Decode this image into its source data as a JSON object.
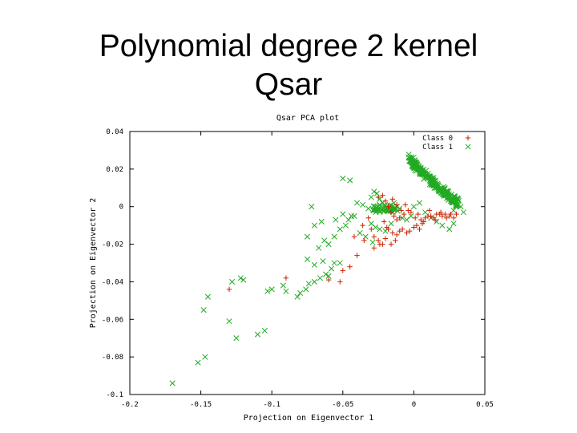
{
  "slide": {
    "title_line1": "Polynomial degree 2 kernel",
    "title_line2": "Qsar"
  },
  "chart_data": {
    "type": "scatter",
    "title": "Qsar PCA plot",
    "xlabel": "Projection on Eigenvector 1",
    "ylabel": "Projection on Eigenvector 2",
    "xlim": [
      -0.2,
      0.05
    ],
    "ylim": [
      -0.1,
      0.04
    ],
    "xticks": [
      -0.2,
      -0.15,
      -0.1,
      -0.05,
      0,
      0.05
    ],
    "xtick_labels": [
      "-0.2",
      "-0.15",
      "-0.1",
      "-0.05",
      "0",
      "0.05"
    ],
    "yticks": [
      0.04,
      0.02,
      0,
      -0.02,
      -0.04,
      -0.06,
      -0.08,
      -0.1
    ],
    "ytick_labels": [
      "0.04",
      "0.02",
      "0",
      "-0.02",
      "-0.04",
      "-0.06",
      "-0.08",
      "-0.1"
    ],
    "grid": false,
    "legend_position": "top-right",
    "series": [
      {
        "name": "Class 0",
        "marker": "plus",
        "color": "#cc2200",
        "points": [
          [
            -0.13,
            -0.044
          ],
          [
            -0.09,
            -0.038
          ],
          [
            -0.05,
            -0.034
          ],
          [
            -0.045,
            -0.032
          ],
          [
            -0.052,
            -0.04
          ],
          [
            -0.06,
            -0.039
          ],
          [
            -0.04,
            -0.026
          ],
          [
            -0.035,
            -0.018
          ],
          [
            -0.03,
            -0.012
          ],
          [
            -0.028,
            -0.016
          ],
          [
            -0.025,
            -0.018
          ],
          [
            -0.022,
            -0.02
          ],
          [
            -0.02,
            -0.017
          ],
          [
            -0.018,
            -0.012
          ],
          [
            -0.015,
            -0.014
          ],
          [
            -0.012,
            -0.015
          ],
          [
            -0.01,
            -0.013
          ],
          [
            -0.008,
            -0.012
          ],
          [
            -0.005,
            -0.014
          ],
          [
            -0.003,
            -0.013
          ],
          [
            0.0,
            -0.011
          ],
          [
            0.002,
            -0.01
          ],
          [
            0.004,
            -0.012
          ],
          [
            0.006,
            -0.009
          ],
          [
            0.008,
            -0.006
          ],
          [
            0.01,
            -0.005
          ],
          [
            0.012,
            -0.005
          ],
          [
            0.014,
            -0.006
          ],
          [
            0.016,
            -0.004
          ],
          [
            0.018,
            -0.004
          ],
          [
            0.02,
            -0.005
          ],
          [
            0.022,
            -0.004
          ],
          [
            0.025,
            -0.005
          ],
          [
            0.028,
            -0.006
          ],
          [
            0.03,
            -0.004
          ],
          [
            -0.02,
            0.003
          ],
          [
            -0.018,
            0.0
          ],
          [
            -0.016,
            -0.003
          ],
          [
            -0.014,
            -0.005
          ],
          [
            -0.012,
            -0.007
          ],
          [
            -0.01,
            -0.006
          ],
          [
            -0.007,
            -0.004
          ],
          [
            -0.004,
            -0.002
          ],
          [
            -0.002,
            -0.003
          ],
          [
            0.001,
            -0.006
          ],
          [
            0.003,
            -0.004
          ],
          [
            0.005,
            -0.007
          ],
          [
            0.007,
            -0.008
          ],
          [
            -0.025,
            0.005
          ],
          [
            -0.022,
            0.006
          ],
          [
            -0.015,
            0.004
          ],
          [
            -0.012,
            0.001
          ],
          [
            -0.032,
            -0.006
          ],
          [
            -0.036,
            -0.01
          ],
          [
            -0.028,
            -0.022
          ],
          [
            -0.024,
            -0.02
          ],
          [
            -0.016,
            -0.02
          ],
          [
            -0.013,
            -0.018
          ],
          [
            0.011,
            -0.002
          ],
          [
            0.015,
            -0.007
          ],
          [
            0.019,
            -0.003
          ],
          [
            0.023,
            -0.006
          ],
          [
            0.026,
            -0.004
          ],
          [
            -0.009,
            -0.002
          ],
          [
            -0.006,
            0.001
          ],
          [
            -0.021,
            -0.008
          ],
          [
            -0.019,
            -0.011
          ],
          [
            -0.042,
            -0.016
          ]
        ]
      },
      {
        "name": "Class 1",
        "marker": "cross",
        "color": "#22aa22",
        "points": [
          [
            -0.17,
            -0.094
          ],
          [
            -0.152,
            -0.083
          ],
          [
            -0.147,
            -0.08
          ],
          [
            -0.125,
            -0.07
          ],
          [
            -0.11,
            -0.068
          ],
          [
            -0.105,
            -0.066
          ],
          [
            -0.13,
            -0.061
          ],
          [
            -0.148,
            -0.055
          ],
          [
            -0.145,
            -0.048
          ],
          [
            -0.128,
            -0.04
          ],
          [
            -0.122,
            -0.038
          ],
          [
            -0.12,
            -0.039
          ],
          [
            -0.103,
            -0.045
          ],
          [
            -0.1,
            -0.044
          ],
          [
            -0.092,
            -0.042
          ],
          [
            -0.09,
            -0.045
          ],
          [
            -0.082,
            -0.048
          ],
          [
            -0.08,
            -0.046
          ],
          [
            -0.076,
            -0.044
          ],
          [
            -0.074,
            -0.041
          ],
          [
            -0.07,
            -0.04
          ],
          [
            -0.066,
            -0.038
          ],
          [
            -0.062,
            -0.036
          ],
          [
            -0.06,
            -0.037
          ],
          [
            -0.058,
            -0.033
          ],
          [
            -0.056,
            -0.03
          ],
          [
            -0.052,
            -0.03
          ],
          [
            -0.075,
            -0.028
          ],
          [
            -0.07,
            -0.031
          ],
          [
            -0.064,
            -0.029
          ],
          [
            -0.067,
            -0.022
          ],
          [
            -0.063,
            -0.018
          ],
          [
            -0.06,
            -0.02
          ],
          [
            -0.056,
            -0.016
          ],
          [
            -0.052,
            -0.012
          ],
          [
            -0.048,
            -0.01
          ],
          [
            -0.046,
            -0.007
          ],
          [
            -0.044,
            -0.005
          ],
          [
            -0.05,
            -0.004
          ],
          [
            -0.055,
            -0.007
          ],
          [
            -0.065,
            -0.008
          ],
          [
            -0.07,
            -0.01
          ],
          [
            -0.075,
            -0.016
          ],
          [
            -0.072,
            0.0
          ],
          [
            -0.05,
            0.015
          ],
          [
            -0.045,
            0.014
          ],
          [
            -0.04,
            0.002
          ],
          [
            -0.036,
            0.001
          ],
          [
            -0.032,
            -0.001
          ],
          [
            -0.03,
            0.005
          ],
          [
            -0.028,
            0.008
          ],
          [
            -0.026,
            0.007
          ],
          [
            -0.024,
            0.004
          ],
          [
            -0.022,
            0.002
          ],
          [
            -0.03,
            -0.009
          ],
          [
            -0.027,
            -0.011
          ],
          [
            -0.024,
            -0.012
          ],
          [
            -0.02,
            -0.013
          ],
          [
            -0.016,
            -0.009
          ],
          [
            -0.014,
            0.002
          ],
          [
            -0.01,
            -0.001
          ],
          [
            -0.008,
            -0.006
          ],
          [
            -0.005,
            -0.007
          ],
          [
            -0.002,
            -0.005
          ],
          [
            0.0,
            0.0
          ],
          [
            0.004,
            0.002
          ],
          [
            0.008,
            -0.003
          ],
          [
            0.012,
            -0.006
          ],
          [
            0.016,
            -0.008
          ],
          [
            0.02,
            -0.01
          ],
          [
            0.025,
            -0.012
          ],
          [
            0.028,
            -0.009
          ],
          [
            0.035,
            -0.003
          ],
          [
            0.028,
            -0.002
          ],
          [
            0.03,
            0.001
          ],
          [
            0.033,
            0.0
          ],
          [
            -0.042,
            -0.005
          ],
          [
            -0.038,
            -0.014
          ],
          [
            -0.034,
            -0.016
          ],
          [
            -0.029,
            -0.019
          ]
        ],
        "dense_band": {
          "from": [
            -0.003,
            0.026
          ],
          "to": [
            0.031,
            0.002
          ],
          "count": 220,
          "spread": 0.0022
        },
        "cluster": {
          "center": [
            -0.02,
            -0.001
          ],
          "count": 45,
          "spread_x": 0.009,
          "spread_y": 0.002
        }
      }
    ]
  }
}
